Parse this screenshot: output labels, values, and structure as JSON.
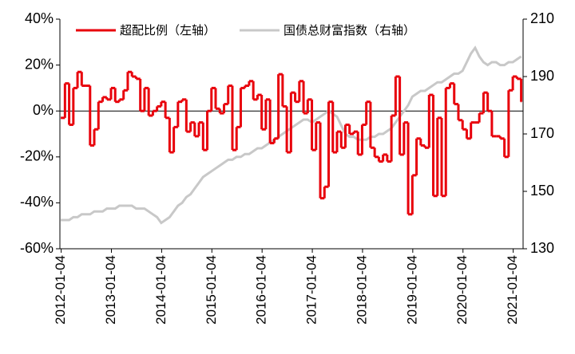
{
  "chart_data": {
    "type": "line",
    "x": [
      "2012-01",
      "2012-02",
      "2012-03",
      "2012-04",
      "2012-05",
      "2012-06",
      "2012-07",
      "2012-08",
      "2012-09",
      "2012-10",
      "2012-11",
      "2012-12",
      "2013-01",
      "2013-02",
      "2013-03",
      "2013-04",
      "2013-05",
      "2013-06",
      "2013-07",
      "2013-08",
      "2013-09",
      "2013-10",
      "2013-11",
      "2013-12",
      "2014-01",
      "2014-02",
      "2014-03",
      "2014-04",
      "2014-05",
      "2014-06",
      "2014-07",
      "2014-08",
      "2014-09",
      "2014-10",
      "2014-11",
      "2014-12",
      "2015-01",
      "2015-02",
      "2015-03",
      "2015-04",
      "2015-05",
      "2015-06",
      "2015-07",
      "2015-08",
      "2015-09",
      "2015-10",
      "2015-11",
      "2015-12",
      "2016-01",
      "2016-02",
      "2016-03",
      "2016-04",
      "2016-05",
      "2016-06",
      "2016-07",
      "2016-08",
      "2016-09",
      "2016-10",
      "2016-11",
      "2016-12",
      "2017-01",
      "2017-02",
      "2017-03",
      "2017-04",
      "2017-05",
      "2017-06",
      "2017-07",
      "2017-08",
      "2017-09",
      "2017-10",
      "2017-11",
      "2017-12",
      "2018-01",
      "2018-02",
      "2018-03",
      "2018-04",
      "2018-05",
      "2018-06",
      "2018-07",
      "2018-08",
      "2018-09",
      "2018-10",
      "2018-11",
      "2018-12",
      "2019-01",
      "2019-02",
      "2019-03",
      "2019-04",
      "2019-05",
      "2019-06",
      "2019-07",
      "2019-08",
      "2019-09",
      "2019-10",
      "2019-11",
      "2019-12",
      "2020-01",
      "2020-02",
      "2020-03",
      "2020-04",
      "2020-05",
      "2020-06",
      "2020-07",
      "2020-08",
      "2020-09",
      "2020-10",
      "2020-11",
      "2020-12",
      "2021-01",
      "2021-02",
      "2021-03"
    ],
    "series": [
      {
        "name": "超配比例（左轴）",
        "color": "#e8000b",
        "step": true,
        "axis": "y",
        "values": [
          -3,
          12,
          -6,
          10,
          17,
          11,
          11,
          -15,
          -8,
          4,
          6,
          5,
          10,
          4,
          5,
          9,
          17,
          15,
          14,
          0,
          10,
          -2,
          0,
          2,
          4,
          -3,
          -18,
          -7,
          4,
          5,
          -9,
          -5,
          -11,
          -5,
          -17,
          0,
          10,
          1,
          -1,
          3,
          11,
          -17,
          -7,
          10,
          11,
          13,
          5,
          7,
          -8,
          5,
          -14,
          -12,
          16,
          2,
          -18,
          8,
          4,
          13,
          -1,
          5,
          -17,
          -5,
          -38,
          -33,
          4,
          -18,
          -9,
          -16,
          -6,
          -10,
          -9,
          -19,
          -6,
          4,
          -16,
          -20,
          -22,
          -19,
          -22,
          -2,
          15,
          -19,
          -5,
          -45,
          -28,
          -12,
          -15,
          -16,
          7,
          -37,
          -3,
          -37,
          10,
          12,
          3,
          -4,
          -8,
          -12,
          -5,
          -5,
          -1,
          8,
          0,
          -11,
          -11,
          -12,
          -20,
          9,
          15,
          14,
          4
        ]
      },
      {
        "name": "国债总财富指数（右轴）",
        "color": "#c8c8c8",
        "axis": "y2",
        "values": [
          140,
          140,
          140,
          141,
          141,
          142,
          142,
          142,
          143,
          143,
          143,
          144,
          144,
          144,
          145,
          145,
          145,
          145,
          144,
          144,
          144,
          143,
          142,
          141,
          139,
          140,
          141,
          143,
          145,
          146,
          148,
          149,
          151,
          153,
          155,
          156,
          157,
          158,
          159,
          160,
          161,
          161,
          162,
          162,
          163,
          163,
          164,
          165,
          165,
          166,
          167,
          168,
          169,
          170,
          171,
          172,
          173,
          174,
          175,
          175,
          174,
          175,
          176,
          177,
          178,
          177,
          176,
          173,
          170,
          169,
          169,
          168,
          168,
          168,
          169,
          169,
          170,
          170,
          171,
          172,
          174,
          176,
          178,
          180,
          183,
          184,
          185,
          185,
          186,
          187,
          188,
          188,
          189,
          190,
          191,
          191,
          192,
          195,
          198,
          200,
          197,
          195,
          194,
          195,
          195,
          194,
          194,
          195,
          195,
          196,
          197
        ]
      }
    ],
    "xlim": [
      "2011-12-25",
      "2021-03-15"
    ],
    "xticks": [
      "2012-01-04",
      "2013-01-04",
      "2014-01-04",
      "2015-01-04",
      "2016-01-04",
      "2017-01-04",
      "2018-01-04",
      "2019-01-04",
      "2020-01-04",
      "2021-01-04"
    ],
    "ylim": [
      -60,
      40
    ],
    "yticks": [
      {
        "value": -60,
        "label": "-60%"
      },
      {
        "value": -40,
        "label": "-40%"
      },
      {
        "value": -20,
        "label": "-20%"
      },
      {
        "value": 0,
        "label": "0%"
      },
      {
        "value": 20,
        "label": "20%"
      },
      {
        "value": 40,
        "label": "40%"
      }
    ],
    "y2lim": [
      130,
      210
    ],
    "y2ticks": [
      130,
      150,
      170,
      190,
      210
    ],
    "legend": "top"
  }
}
